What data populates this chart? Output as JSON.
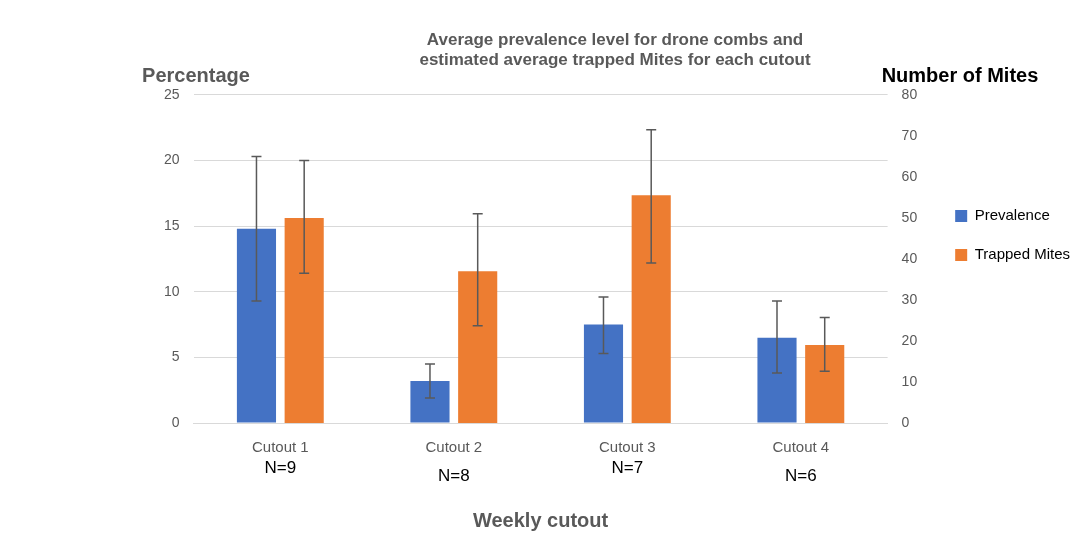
{
  "chart_data": {
    "type": "bar",
    "title": "Average prevalence level for drone combs and estimated average trapped Mites for each cutout",
    "xlabel": "Weekly cutout",
    "ylabel": "Percentage",
    "y2label": "Number of Mites",
    "categories": [
      "Cutout 1",
      "Cutout 2",
      "Cutout 3",
      "Cutout 4"
    ],
    "series": [
      {
        "name": "Prevalence",
        "color": "#4472c4",
        "values": [
          14.8,
          3.2,
          7.5,
          6.5
        ],
        "errors": [
          [
            9.3,
            20.3
          ],
          [
            1.9,
            4.5
          ],
          [
            5.3,
            9.6
          ],
          [
            3.8,
            9.3
          ]
        ]
      },
      {
        "name": "Trapped Mites",
        "color": "#ed7d31",
        "axis": "y2",
        "values": [
          50,
          37,
          55.5,
          19
        ],
        "errors": [
          [
            36.5,
            64
          ],
          [
            23.7,
            51
          ],
          [
            39,
            71.5
          ],
          [
            12.6,
            25.7
          ]
        ]
      }
    ],
    "ylim": [
      0,
      25
    ],
    "yticks": [
      0,
      5,
      10,
      15,
      20,
      25
    ],
    "y2lim": [
      0,
      80
    ],
    "y2ticks": [
      0,
      10,
      20,
      30,
      40,
      50,
      60,
      70,
      80
    ],
    "grid": "y",
    "legend": "right",
    "annotations": [
      "N=9",
      "N=8",
      "N=7",
      "N=6"
    ]
  }
}
